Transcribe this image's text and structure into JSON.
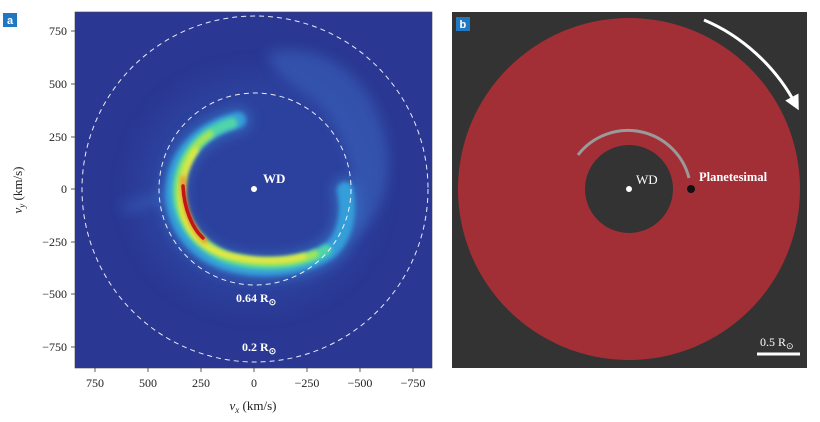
{
  "panel_a": {
    "badge": "a",
    "x_axis_label": "v",
    "x_axis_sub": "x",
    "x_axis_unit": " (km/s)",
    "y_axis_label": "v",
    "y_axis_sub": "y",
    "y_axis_unit": " (km/s)",
    "x_ticks": [
      "750",
      "500",
      "250",
      "0",
      "−250",
      "−500",
      "−750"
    ],
    "y_ticks": [
      "750",
      "500",
      "250",
      "0",
      "−250",
      "−500",
      "−750"
    ],
    "center_label": "WD",
    "inner_circle_label": "0.64 R",
    "outer_circle_label": "0.2 R",
    "sun_symbol": "⊙",
    "colors": {
      "background": "#2a3893",
      "ring_peak": "#c41414",
      "ring_high": "#f2e83a",
      "ring_mid": "#4fd6a8",
      "ring_low": "#34a9e0"
    }
  },
  "panel_b": {
    "badge": "b",
    "center_label": "WD",
    "planetesimal_label": "Planetesimal",
    "scale_label": "0.5 R",
    "sun_symbol": "⊙",
    "colors": {
      "background": "#333333",
      "disk": "#a32f36",
      "hole": "#333333",
      "arc": "#9a9a9a",
      "arrow": "#ffffff"
    }
  },
  "colors": {
    "badge": "#1f78c1"
  }
}
